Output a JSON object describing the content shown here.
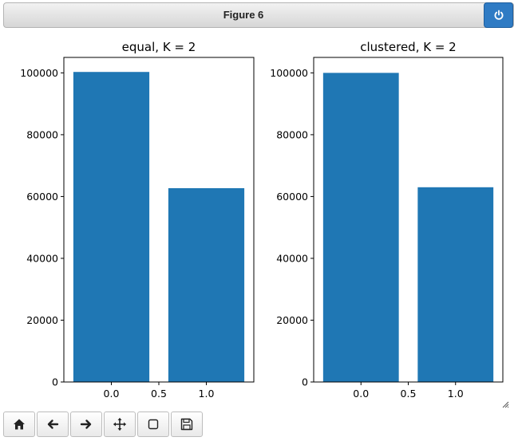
{
  "window": {
    "title": "Figure 6",
    "icons": {
      "power": "power-icon",
      "resize": "resize-grip-icon"
    }
  },
  "toolbar": {
    "buttons": [
      {
        "name": "home-button",
        "icon": "home-icon"
      },
      {
        "name": "back-button",
        "icon": "arrow-left-icon"
      },
      {
        "name": "forward-button",
        "icon": "arrow-right-icon"
      },
      {
        "name": "pan-button",
        "icon": "move-icon"
      },
      {
        "name": "zoom-button",
        "icon": "zoom-rect-icon"
      },
      {
        "name": "save-button",
        "icon": "save-icon"
      }
    ]
  },
  "colors": {
    "bar": "#1f77b4",
    "accent": "#2f7bc4"
  },
  "chart_data": [
    {
      "type": "bar",
      "title": "equal, K = 2",
      "categories": [
        0.0,
        1.0
      ],
      "values": [
        100300,
        62700
      ],
      "bar_width": 0.8,
      "xlim": [
        -0.5,
        1.5
      ],
      "ylim": [
        0,
        105000
      ],
      "xticks": [
        0.0,
        0.5,
        1.0
      ],
      "xtick_labels": [
        "0.0",
        "0.5",
        "1.0"
      ],
      "yticks": [
        0,
        20000,
        40000,
        60000,
        80000,
        100000
      ],
      "ytick_labels": [
        "0",
        "20000",
        "40000",
        "60000",
        "80000",
        "100000"
      ],
      "xlabel": "",
      "ylabel": "",
      "grid": false
    },
    {
      "type": "bar",
      "title": "clustered, K = 2",
      "categories": [
        0.0,
        1.0
      ],
      "values": [
        100000,
        63000
      ],
      "bar_width": 0.8,
      "xlim": [
        -0.5,
        1.5
      ],
      "ylim": [
        0,
        105000
      ],
      "xticks": [
        0.0,
        0.5,
        1.0
      ],
      "xtick_labels": [
        "0.0",
        "0.5",
        "1.0"
      ],
      "yticks": [
        0,
        20000,
        40000,
        60000,
        80000,
        100000
      ],
      "ytick_labels": [
        "0",
        "20000",
        "40000",
        "60000",
        "80000",
        "100000"
      ],
      "xlabel": "",
      "ylabel": "",
      "grid": false
    }
  ]
}
